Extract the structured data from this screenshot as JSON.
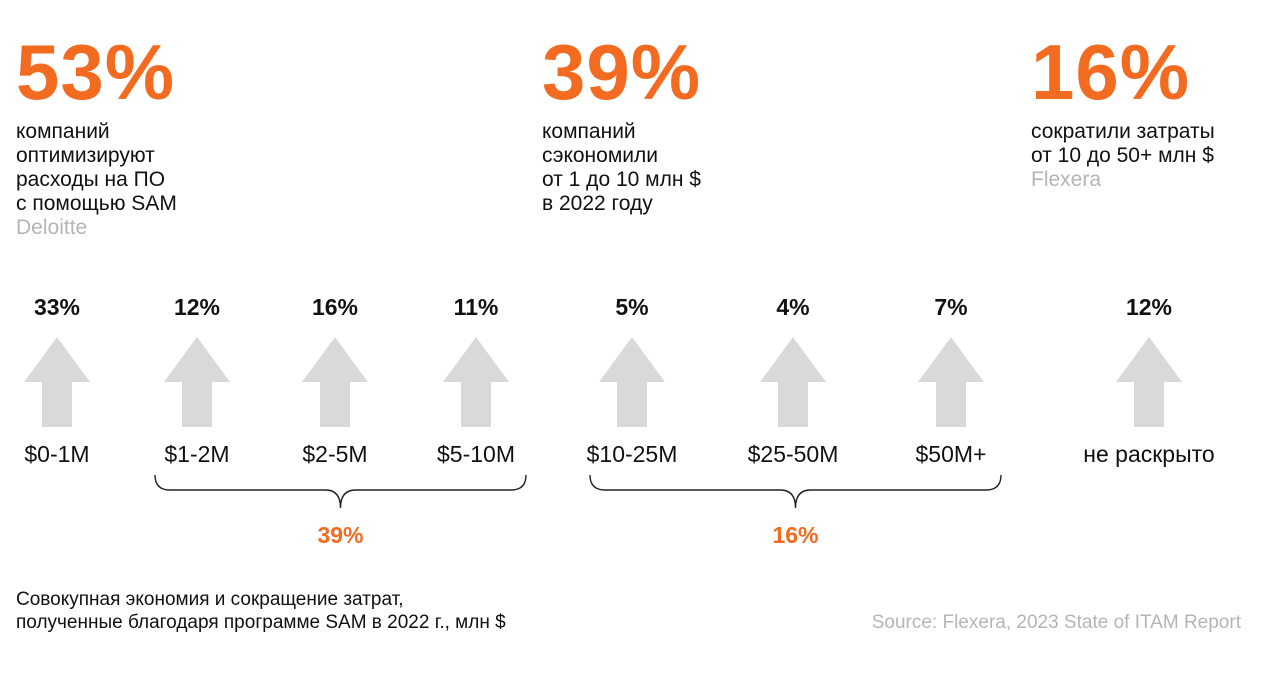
{
  "stats": [
    {
      "value": "53%",
      "text": "компаний\nоптимизируют\nрасходы на ПО\nс помощью SAM",
      "source": "Deloitte"
    },
    {
      "value": "39%",
      "text": "компаний\nсэкономили\nот 1 до 10 млн $\nв 2022 году",
      "source": ""
    },
    {
      "value": "16%",
      "text": "сократили затраты\nот 10 до 50+ млн $",
      "source": "Flexera"
    }
  ],
  "chart_data": {
    "type": "bar",
    "categories": [
      "$0-1M",
      "$1-2M",
      "$2-5M",
      "$5-10M",
      "$10-25M",
      "$25-50M",
      "$50M+",
      "не раскрыто"
    ],
    "values": [
      33,
      12,
      16,
      11,
      5,
      4,
      7,
      12
    ],
    "value_labels": [
      "33%",
      "12%",
      "16%",
      "11%",
      "5%",
      "4%",
      "7%",
      "12%"
    ],
    "groups": [
      {
        "from": 1,
        "to": 3,
        "label": "39%"
      },
      {
        "from": 4,
        "to": 6,
        "label": "16%"
      }
    ],
    "title": "",
    "xlabel": "",
    "ylabel": ""
  },
  "colors": {
    "accent": "#F26B21",
    "arrow": "#D9D9D9",
    "muted": "#B5B5B5",
    "text": "#111111"
  },
  "caption": "Совокупная экономия и сокращение затрат,\nполученные благодаря программе SAM в 2022 г., млн $",
  "source": "Source: Flexera, 2023 State of ITAM Report"
}
